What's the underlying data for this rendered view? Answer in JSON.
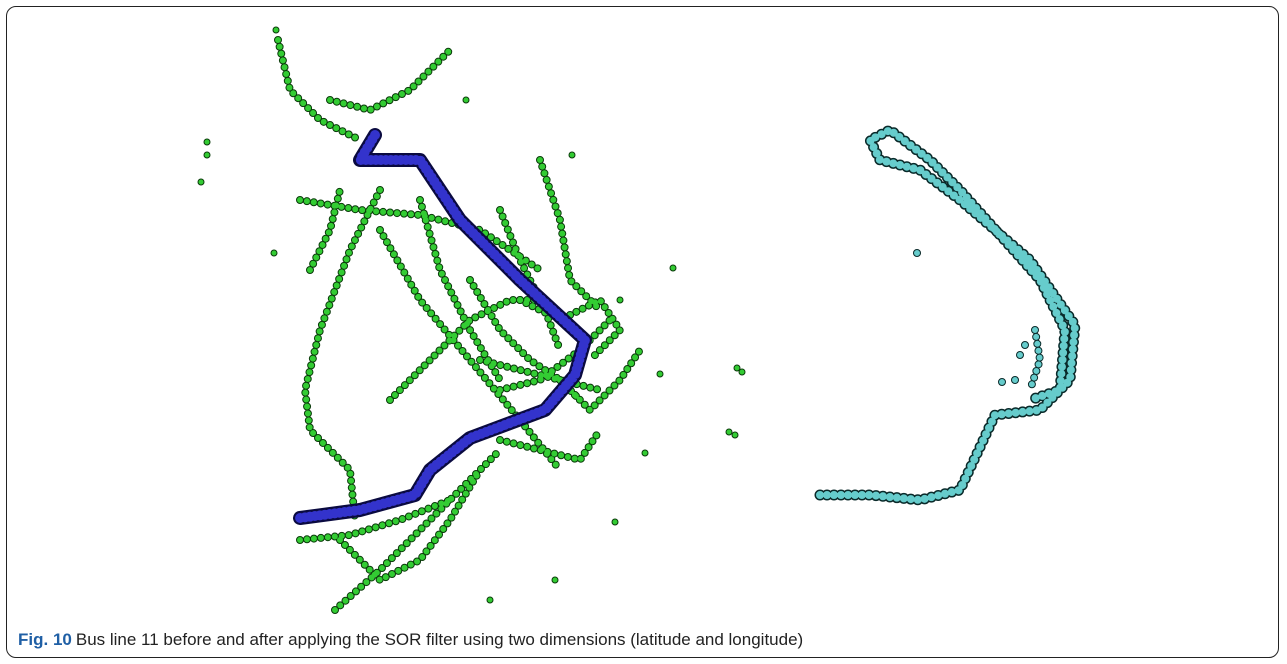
{
  "figure": {
    "label": "Fig. 10",
    "caption": "Bus line 11 before and after applying the SOR filter using two dimensions (latitude and longitude)"
  }
}
